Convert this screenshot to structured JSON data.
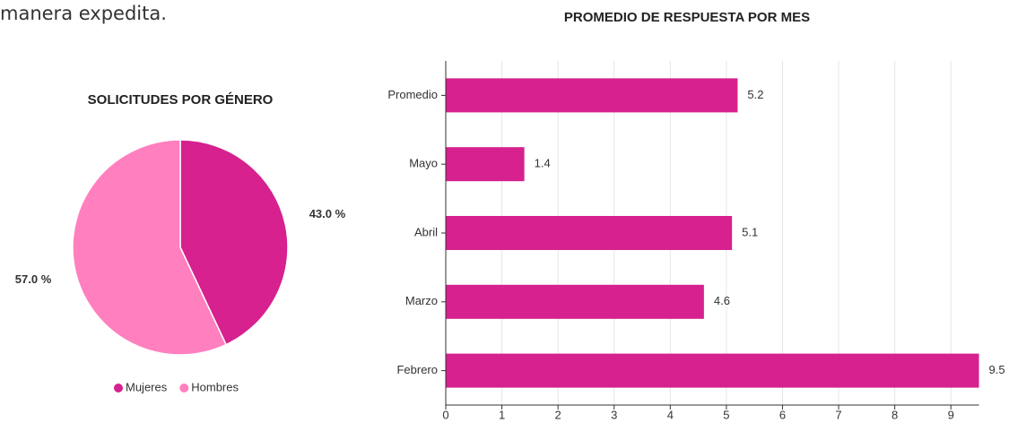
{
  "text": "manera expedita.",
  "chart_data": [
    {
      "type": "pie",
      "title": "SOLICITUDES POR GÉNERO",
      "categories": [
        "Mujeres",
        "Hombres"
      ],
      "values": [
        43.0,
        57.0
      ],
      "value_labels": [
        "43.0 %",
        "57.0 %"
      ],
      "colors": [
        "#d6218e",
        "#ff7fbf"
      ],
      "legend": "bottom"
    },
    {
      "type": "bar",
      "orientation": "horizontal",
      "title": "PROMEDIO DE RESPUESTA POR MES",
      "categories": [
        "Promedio",
        "Mayo",
        "Abril",
        "Marzo",
        "Febrero"
      ],
      "values": [
        5.2,
        1.4,
        5.1,
        4.6,
        9.5
      ],
      "color": "#d6218e",
      "xlim": [
        0,
        9.5
      ],
      "xticks": [
        0,
        1,
        2,
        3,
        4,
        5,
        6,
        7,
        8,
        9
      ],
      "grid": true
    }
  ]
}
